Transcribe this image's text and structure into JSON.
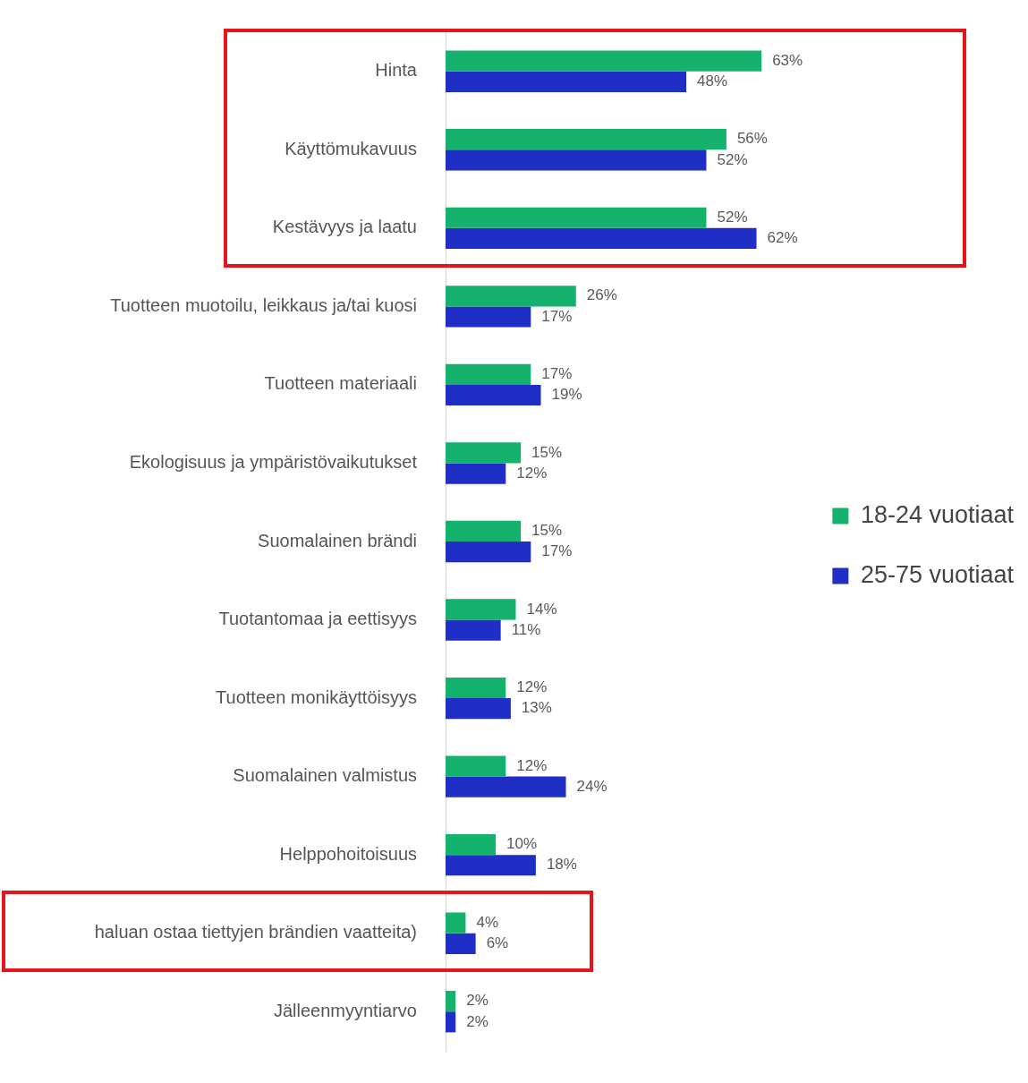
{
  "chart_data": {
    "type": "bar",
    "orientation": "horizontal",
    "legend": "right",
    "grid": false,
    "categories": [
      "Hinta",
      "Käyttömukavuus",
      "Kestävyys ja laatu",
      "Tuotteen muotoilu, leikkaus ja/tai kuosi",
      "Tuotteen materiaali",
      "Ekologisuus ja ympäristövaikutukset",
      "Suomalainen brändi",
      "Tuotantomaa ja eettisyys",
      "Tuotteen monikäyttöisyys",
      "Suomalainen valmistus",
      "Helppohoitoisuus",
      "haluan ostaa tiettyjen brändien vaatteita)",
      "Jälleenmyyntiarvo"
    ],
    "series": [
      {
        "name": "18-24 vuotiaat",
        "color": "#14b26c",
        "values": [
          63,
          56,
          52,
          26,
          17,
          15,
          15,
          14,
          12,
          12,
          10,
          4,
          2
        ],
        "value_labels": [
          "63%",
          "56%",
          "52%",
          "26%",
          "17%",
          "15%",
          "15%",
          "14%",
          "12%",
          "12%",
          "10%",
          "4%",
          "2%"
        ]
      },
      {
        "name": "25-75 vuotiaat",
        "color": "#1f2ec4",
        "values": [
          48,
          52,
          62,
          17,
          19,
          12,
          17,
          11,
          13,
          24,
          18,
          6,
          2
        ],
        "value_labels": [
          "48%",
          "52%",
          "62%",
          "17%",
          "19%",
          "12%",
          "17%",
          "11%",
          "13%",
          "24%",
          "18%",
          "6%",
          "2%"
        ]
      }
    ]
  }
}
